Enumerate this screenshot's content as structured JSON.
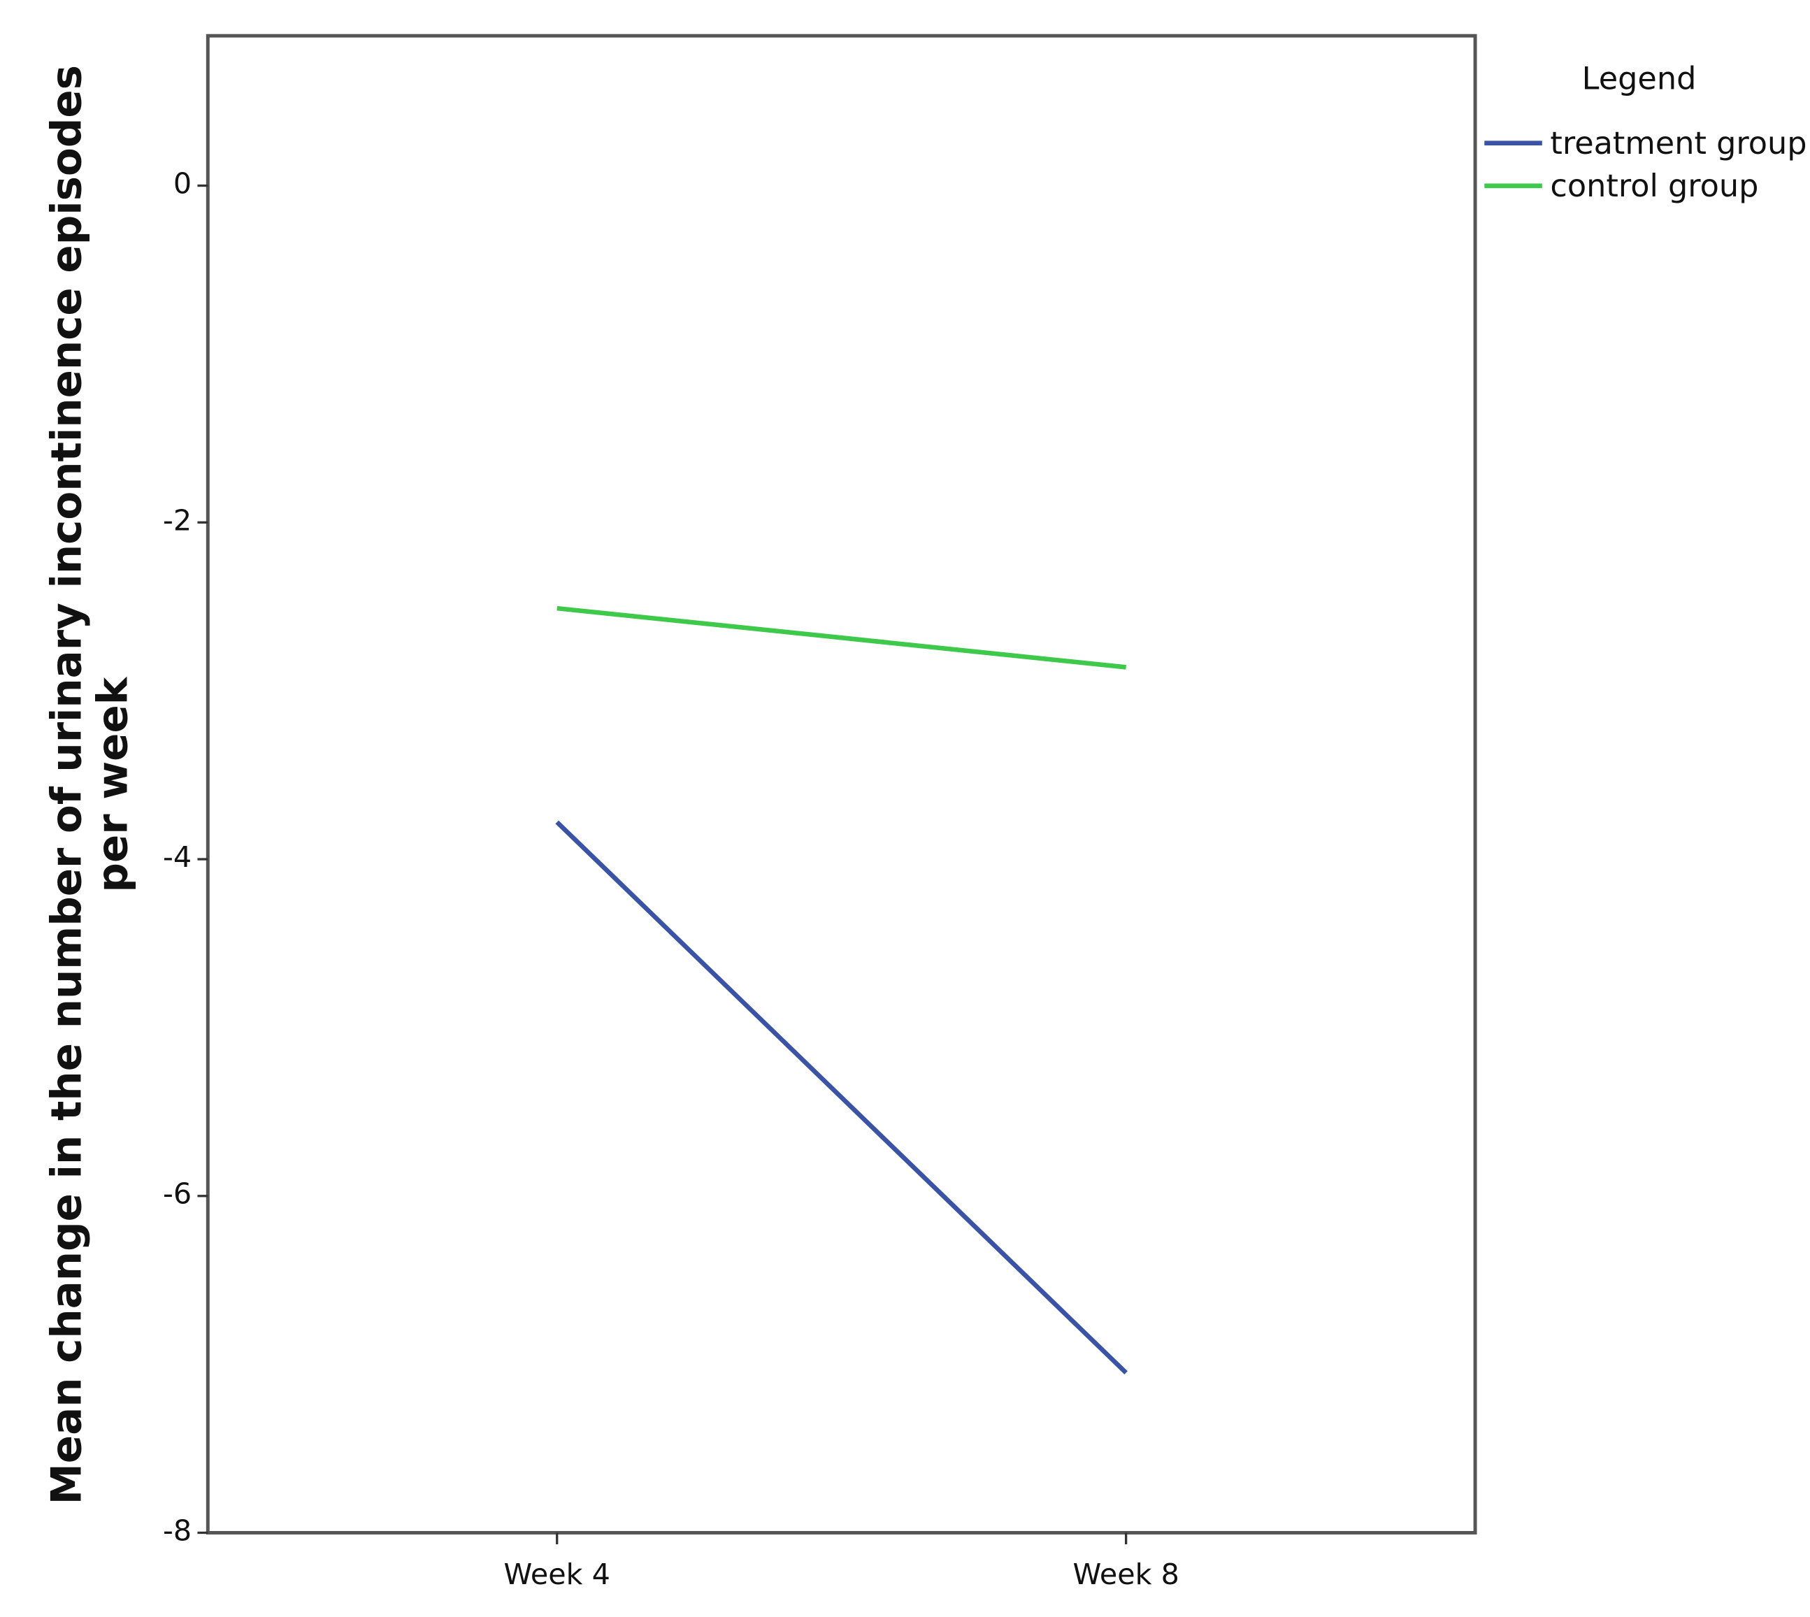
{
  "chart_data": {
    "type": "line",
    "ylabel": [
      "Mean change in the number of urinary incontinence episodes",
      "per week"
    ],
    "legend_title": "Legend",
    "legend_position": "right",
    "categories": [
      "Week 4",
      "Week 8"
    ],
    "series": [
      {
        "name": "treatment group",
        "color": "#3a53a4",
        "values": [
          -3.78,
          -7.05
        ]
      },
      {
        "name": "control group",
        "color": "#3ec94a",
        "values": [
          -2.51,
          -2.86
        ]
      }
    ],
    "ylim": [
      -8,
      0.89
    ],
    "yticks": [
      -8,
      -6,
      -4,
      -2,
      0
    ],
    "grid": false
  }
}
